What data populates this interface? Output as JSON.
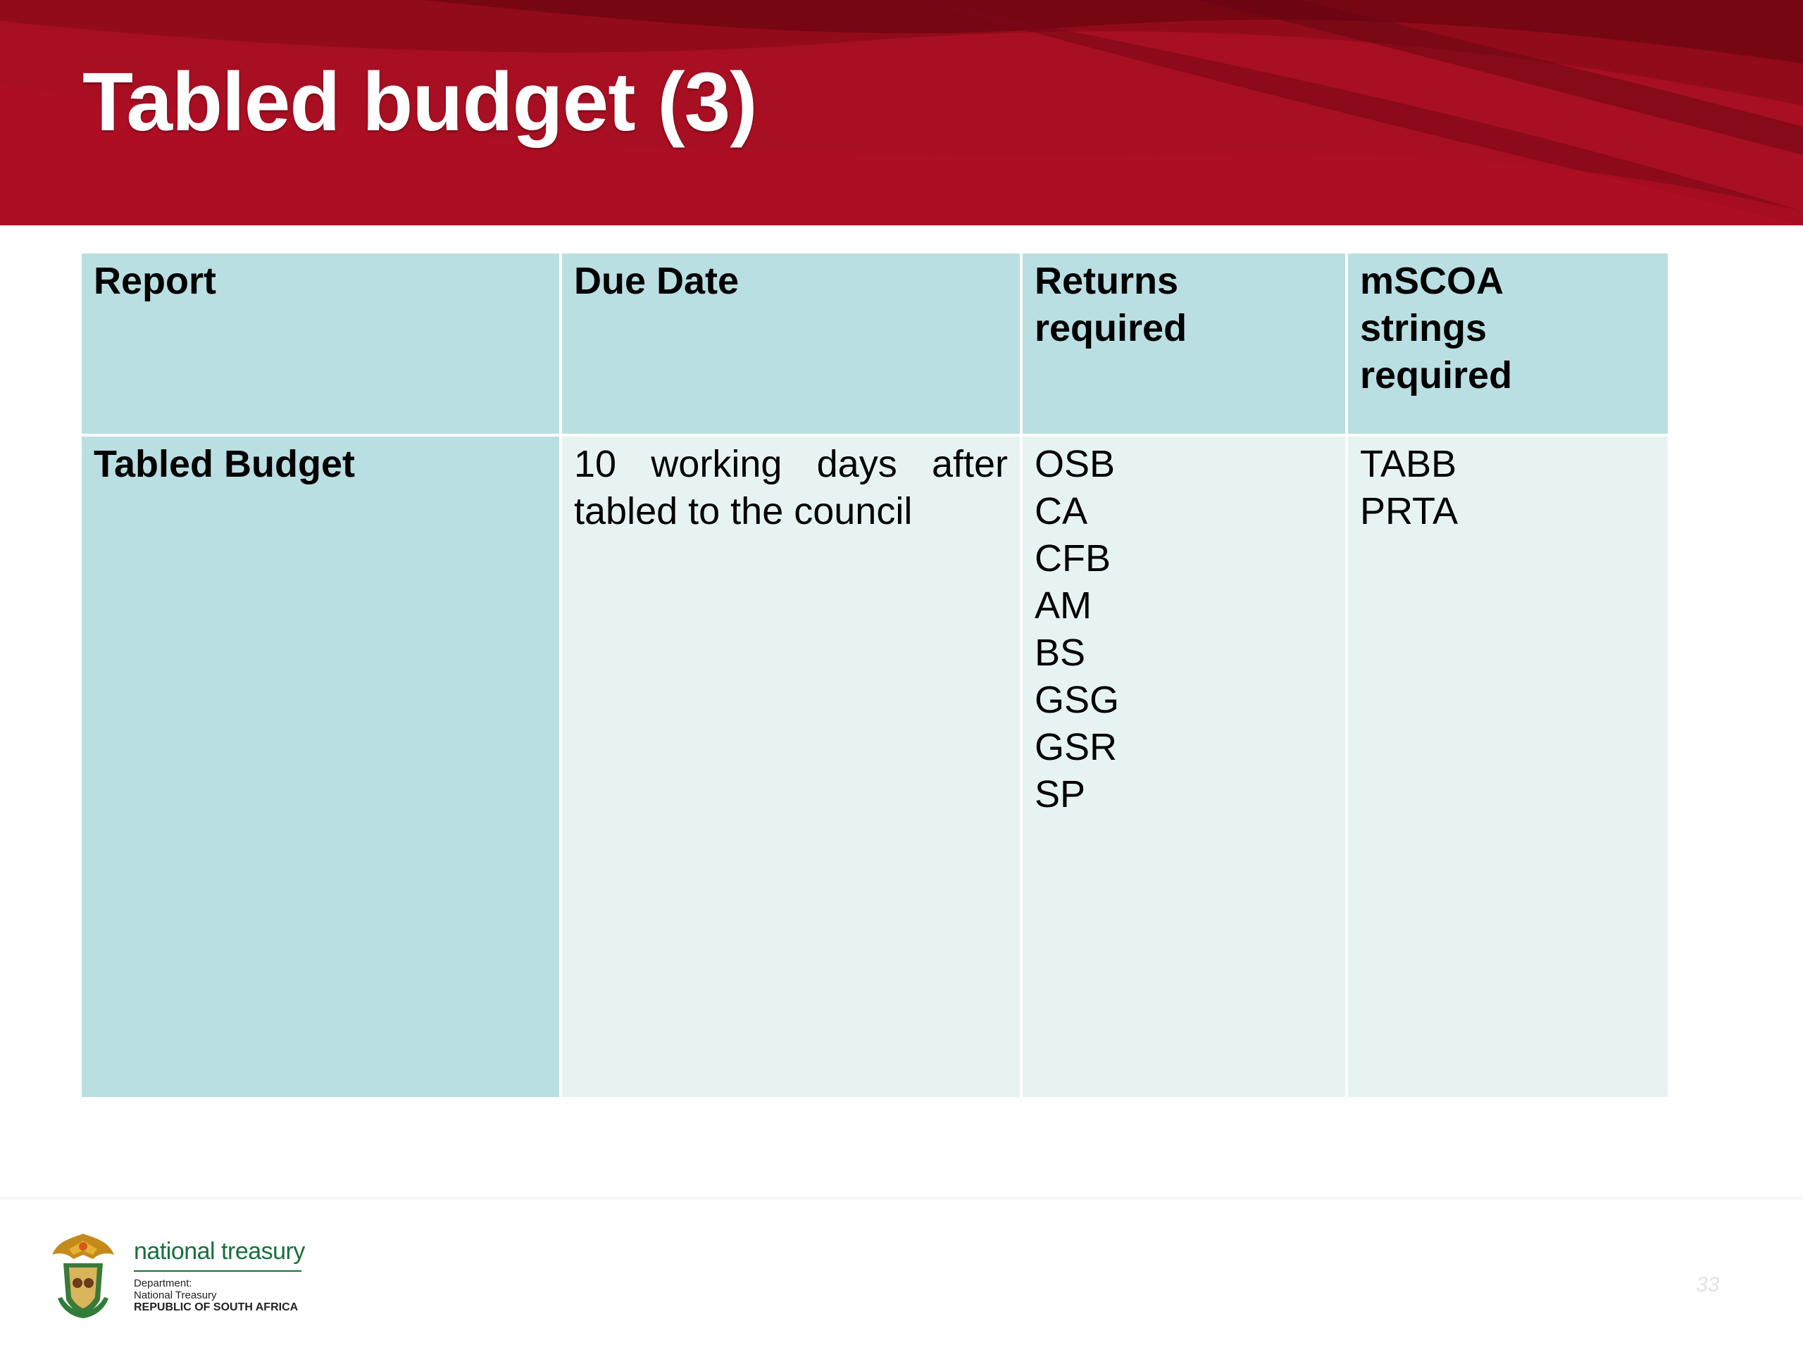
{
  "slide": {
    "title": "Tabled budget (3)",
    "page_number": "33"
  },
  "table": {
    "headers": [
      "Report",
      "Due Date",
      "Returns required",
      "mSCOA strings required"
    ],
    "header_lines": {
      "returns": [
        "Returns",
        "required"
      ],
      "mscoa": [
        "mSCOA",
        "strings",
        "required"
      ]
    },
    "row": {
      "report": "Tabled Budget",
      "due_date": "10 working days after tabled to the council",
      "returns": [
        "OSB",
        "CA",
        "CFB",
        "AM",
        "BS",
        "GSG",
        "GSR",
        "SP"
      ],
      "mscoa_strings": [
        "TABB",
        "PRTA"
      ]
    }
  },
  "footer": {
    "org_name": "national treasury",
    "line1": "Department:",
    "line2": "National Treasury",
    "line3": "REPUBLIC OF SOUTH AFRICA"
  },
  "colors": {
    "banner_red": "#a30f21",
    "header_cell": "#badfe2",
    "body_cell": "#e7f3f3",
    "treasury_green": "#176f3b"
  }
}
